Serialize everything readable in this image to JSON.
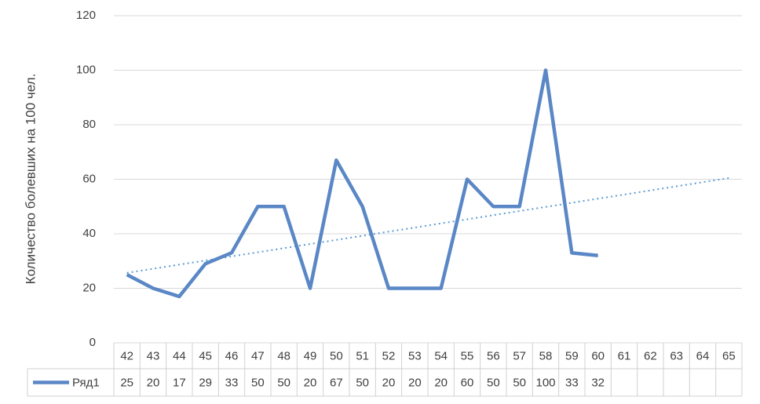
{
  "chart_data": {
    "type": "line",
    "y_label": "Количество болевших на 100 чел.",
    "categories": [
      "42",
      "43",
      "44",
      "45",
      "46",
      "47",
      "48",
      "49",
      "50",
      "51",
      "52",
      "53",
      "54",
      "55",
      "56",
      "57",
      "58",
      "59",
      "60",
      "61",
      "62",
      "63",
      "64",
      "65"
    ],
    "series": [
      {
        "name": "Ряд1",
        "color": "#5a87c5",
        "values": [
          25,
          20,
          17,
          29,
          33,
          50,
          50,
          20,
          67,
          50,
          20,
          20,
          20,
          60,
          50,
          50,
          100,
          33,
          32,
          null,
          null,
          null,
          null,
          null
        ]
      }
    ],
    "ylim": [
      0,
      120
    ],
    "yticks": [
      0,
      20,
      40,
      60,
      80,
      100,
      120
    ],
    "grid": true,
    "trendline": {
      "type": "linear",
      "color": "#5b9bd5"
    },
    "data_table": true
  }
}
